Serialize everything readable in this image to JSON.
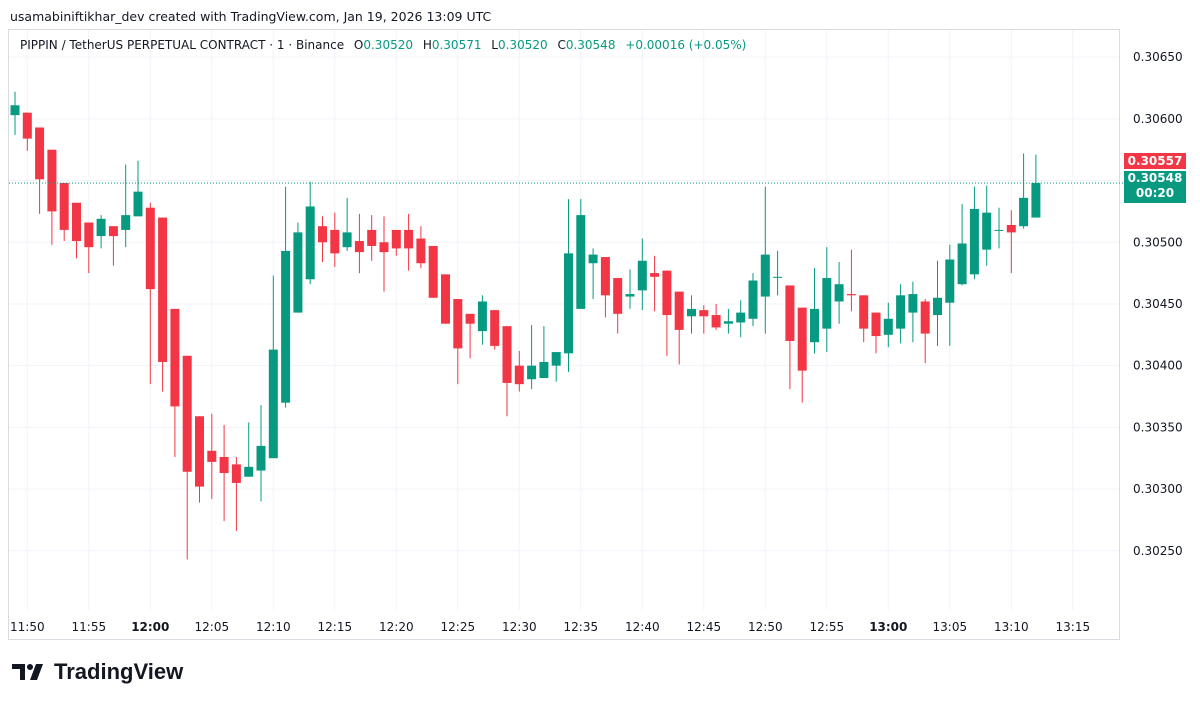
{
  "header": {
    "attribution": "usamabiniftikhar_dev created with TradingView.com, Jan 19, 2026 13:09 UTC"
  },
  "legend": {
    "symbol": "PIPPIN / TetherUS PERPETUAL CONTRACT · 1 · Binance",
    "o_label": "O",
    "o_value": "0.30520",
    "h_label": "H",
    "h_value": "0.30571",
    "l_label": "L",
    "l_value": "0.30520",
    "c_label": "C",
    "c_value": "0.30548",
    "change": "+0.00016 (+0.05%)"
  },
  "price_tags": {
    "last_red": "0.30557",
    "current": "0.30548",
    "countdown": "00:20"
  },
  "logo": {
    "text": "TradingView"
  },
  "colors": {
    "up": "#089981",
    "down": "#f23645",
    "grid": "#f0f3fa",
    "text": "#131722"
  },
  "chart_data": {
    "type": "candlestick",
    "x_tick_labels": [
      "11:50",
      "11:55",
      "12:00",
      "12:05",
      "12:10",
      "12:15",
      "12:20",
      "12:25",
      "12:30",
      "12:35",
      "12:40",
      "12:45",
      "12:50",
      "12:55",
      "13:00",
      "13:05",
      "13:10",
      "13:15"
    ],
    "bold_x_ticks": [
      "12:00",
      "13:00"
    ],
    "y_tick_labels": [
      "0.30650",
      "0.30600",
      "0.30550",
      "0.30500",
      "0.30450",
      "0.30400",
      "0.30350",
      "0.30300",
      "0.30250"
    ],
    "ylim": [
      0.30202,
      0.30672
    ],
    "current_price": 0.30548,
    "grid": true,
    "candles": [
      {
        "o": 0.30603,
        "h": 0.30622,
        "l": 0.30587,
        "c": 0.30611
      },
      {
        "o": 0.30605,
        "h": 0.30605,
        "l": 0.30574,
        "c": 0.30584
      },
      {
        "o": 0.30593,
        "h": 0.30593,
        "l": 0.30523,
        "c": 0.30551
      },
      {
        "o": 0.30575,
        "h": 0.30575,
        "l": 0.30498,
        "c": 0.30525
      },
      {
        "o": 0.30548,
        "h": 0.30548,
        "l": 0.30501,
        "c": 0.3051
      },
      {
        "o": 0.30532,
        "h": 0.30532,
        "l": 0.30487,
        "c": 0.30501
      },
      {
        "o": 0.30516,
        "h": 0.30516,
        "l": 0.30475,
        "c": 0.30496
      },
      {
        "o": 0.30505,
        "h": 0.30522,
        "l": 0.30495,
        "c": 0.30519
      },
      {
        "o": 0.30513,
        "h": 0.30513,
        "l": 0.30481,
        "c": 0.30505
      },
      {
        "o": 0.3051,
        "h": 0.30563,
        "l": 0.30496,
        "c": 0.30522
      },
      {
        "o": 0.30521,
        "h": 0.30566,
        "l": 0.30523,
        "c": 0.30541
      },
      {
        "o": 0.30528,
        "h": 0.30532,
        "l": 0.30385,
        "c": 0.30462
      },
      {
        "o": 0.3052,
        "h": 0.3052,
        "l": 0.30379,
        "c": 0.30403
      },
      {
        "o": 0.30446,
        "h": 0.30446,
        "l": 0.30326,
        "c": 0.30367
      },
      {
        "o": 0.30408,
        "h": 0.30408,
        "l": 0.30243,
        "c": 0.30314
      },
      {
        "o": 0.30359,
        "h": 0.30359,
        "l": 0.30289,
        "c": 0.30302
      },
      {
        "o": 0.30331,
        "h": 0.30361,
        "l": 0.30292,
        "c": 0.30322
      },
      {
        "o": 0.30326,
        "h": 0.30352,
        "l": 0.30274,
        "c": 0.30313
      },
      {
        "o": 0.3032,
        "h": 0.30326,
        "l": 0.30266,
        "c": 0.30305
      },
      {
        "o": 0.3031,
        "h": 0.30354,
        "l": 0.30311,
        "c": 0.30318
      },
      {
        "o": 0.30315,
        "h": 0.30368,
        "l": 0.3029,
        "c": 0.30335
      },
      {
        "o": 0.30325,
        "h": 0.30473,
        "l": 0.30326,
        "c": 0.30413
      },
      {
        "o": 0.3037,
        "h": 0.30545,
        "l": 0.30366,
        "c": 0.30493
      },
      {
        "o": 0.30443,
        "h": 0.30516,
        "l": 0.30443,
        "c": 0.30508
      },
      {
        "o": 0.3047,
        "h": 0.30549,
        "l": 0.30466,
        "c": 0.30529
      },
      {
        "o": 0.30513,
        "h": 0.30521,
        "l": 0.30484,
        "c": 0.305
      },
      {
        "o": 0.3051,
        "h": 0.30524,
        "l": 0.3048,
        "c": 0.30491
      },
      {
        "o": 0.30496,
        "h": 0.30536,
        "l": 0.30493,
        "c": 0.30508
      },
      {
        "o": 0.30501,
        "h": 0.30523,
        "l": 0.30475,
        "c": 0.30492
      },
      {
        "o": 0.3051,
        "h": 0.30522,
        "l": 0.30485,
        "c": 0.30497
      },
      {
        "o": 0.305,
        "h": 0.30521,
        "l": 0.3046,
        "c": 0.30492
      },
      {
        "o": 0.3051,
        "h": 0.3051,
        "l": 0.30489,
        "c": 0.30495
      },
      {
        "o": 0.3051,
        "h": 0.30523,
        "l": 0.30477,
        "c": 0.30495
      },
      {
        "o": 0.30503,
        "h": 0.30513,
        "l": 0.30479,
        "c": 0.30483
      },
      {
        "o": 0.30497,
        "h": 0.30497,
        "l": 0.30455,
        "c": 0.30455
      },
      {
        "o": 0.30474,
        "h": 0.30474,
        "l": 0.30436,
        "c": 0.30434
      },
      {
        "o": 0.30454,
        "h": 0.30454,
        "l": 0.30385,
        "c": 0.30414
      },
      {
        "o": 0.30442,
        "h": 0.30442,
        "l": 0.30406,
        "c": 0.30434
      },
      {
        "o": 0.30428,
        "h": 0.30457,
        "l": 0.30417,
        "c": 0.30452
      },
      {
        "o": 0.30445,
        "h": 0.30445,
        "l": 0.30413,
        "c": 0.30416
      },
      {
        "o": 0.30432,
        "h": 0.30432,
        "l": 0.30359,
        "c": 0.30386
      },
      {
        "o": 0.304,
        "h": 0.30412,
        "l": 0.30379,
        "c": 0.30385
      },
      {
        "o": 0.30389,
        "h": 0.30433,
        "l": 0.30381,
        "c": 0.304
      },
      {
        "o": 0.3039,
        "h": 0.30432,
        "l": 0.30394,
        "c": 0.30403
      },
      {
        "o": 0.304,
        "h": 0.30411,
        "l": 0.30387,
        "c": 0.30411
      },
      {
        "o": 0.3041,
        "h": 0.30535,
        "l": 0.30395,
        "c": 0.30491
      },
      {
        "o": 0.30446,
        "h": 0.30535,
        "l": 0.30446,
        "c": 0.30522
      },
      {
        "o": 0.30483,
        "h": 0.30495,
        "l": 0.30454,
        "c": 0.3049
      },
      {
        "o": 0.30488,
        "h": 0.30488,
        "l": 0.30439,
        "c": 0.30457
      },
      {
        "o": 0.30471,
        "h": 0.30471,
        "l": 0.30426,
        "c": 0.30442
      },
      {
        "o": 0.30456,
        "h": 0.30478,
        "l": 0.30446,
        "c": 0.30458
      },
      {
        "o": 0.30461,
        "h": 0.30503,
        "l": 0.30445,
        "c": 0.30485
      },
      {
        "o": 0.30475,
        "h": 0.30489,
        "l": 0.30444,
        "c": 0.30472
      },
      {
        "o": 0.30477,
        "h": 0.30477,
        "l": 0.30408,
        "c": 0.30441
      },
      {
        "o": 0.3046,
        "h": 0.3046,
        "l": 0.30401,
        "c": 0.30429
      },
      {
        "o": 0.3044,
        "h": 0.30457,
        "l": 0.30426,
        "c": 0.30446
      },
      {
        "o": 0.30445,
        "h": 0.30449,
        "l": 0.30426,
        "c": 0.3044
      },
      {
        "o": 0.30441,
        "h": 0.3045,
        "l": 0.30429,
        "c": 0.30431
      },
      {
        "o": 0.30434,
        "h": 0.30446,
        "l": 0.30426,
        "c": 0.30436
      },
      {
        "o": 0.30435,
        "h": 0.30453,
        "l": 0.30423,
        "c": 0.30443
      },
      {
        "o": 0.30438,
        "h": 0.30475,
        "l": 0.30432,
        "c": 0.30469
      },
      {
        "o": 0.30456,
        "h": 0.30545,
        "l": 0.30426,
        "c": 0.3049
      },
      {
        "o": 0.30472,
        "h": 0.30493,
        "l": 0.30457,
        "c": 0.30472
      },
      {
        "o": 0.30465,
        "h": 0.30465,
        "l": 0.30381,
        "c": 0.3042
      },
      {
        "o": 0.30447,
        "h": 0.30447,
        "l": 0.3037,
        "c": 0.30396
      },
      {
        "o": 0.30419,
        "h": 0.30479,
        "l": 0.3041,
        "c": 0.30446
      },
      {
        "o": 0.3043,
        "h": 0.30496,
        "l": 0.30411,
        "c": 0.30471
      },
      {
        "o": 0.30452,
        "h": 0.30484,
        "l": 0.30434,
        "c": 0.30466
      },
      {
        "o": 0.30458,
        "h": 0.30494,
        "l": 0.30444,
        "c": 0.30457
      },
      {
        "o": 0.30457,
        "h": 0.30457,
        "l": 0.30419,
        "c": 0.3043
      },
      {
        "o": 0.30443,
        "h": 0.30443,
        "l": 0.3041,
        "c": 0.30424
      },
      {
        "o": 0.30425,
        "h": 0.30451,
        "l": 0.30415,
        "c": 0.30438
      },
      {
        "o": 0.3043,
        "h": 0.30466,
        "l": 0.30418,
        "c": 0.30457
      },
      {
        "o": 0.30443,
        "h": 0.30468,
        "l": 0.30419,
        "c": 0.30458
      },
      {
        "o": 0.30452,
        "h": 0.30454,
        "l": 0.30402,
        "c": 0.30426
      },
      {
        "o": 0.30441,
        "h": 0.30485,
        "l": 0.30416,
        "c": 0.30455
      },
      {
        "o": 0.30451,
        "h": 0.30498,
        "l": 0.30416,
        "c": 0.30486
      },
      {
        "o": 0.30466,
        "h": 0.30531,
        "l": 0.30465,
        "c": 0.30499
      },
      {
        "o": 0.30474,
        "h": 0.30545,
        "l": 0.3047,
        "c": 0.30527
      },
      {
        "o": 0.30494,
        "h": 0.30546,
        "l": 0.30481,
        "c": 0.30524
      },
      {
        "o": 0.3051,
        "h": 0.30528,
        "l": 0.30495,
        "c": 0.3051
      },
      {
        "o": 0.30514,
        "h": 0.30526,
        "l": 0.30475,
        "c": 0.30508
      },
      {
        "o": 0.30513,
        "h": 0.30572,
        "l": 0.30511,
        "c": 0.30536
      },
      {
        "o": 0.3052,
        "h": 0.30571,
        "l": 0.3052,
        "c": 0.30548
      }
    ]
  }
}
